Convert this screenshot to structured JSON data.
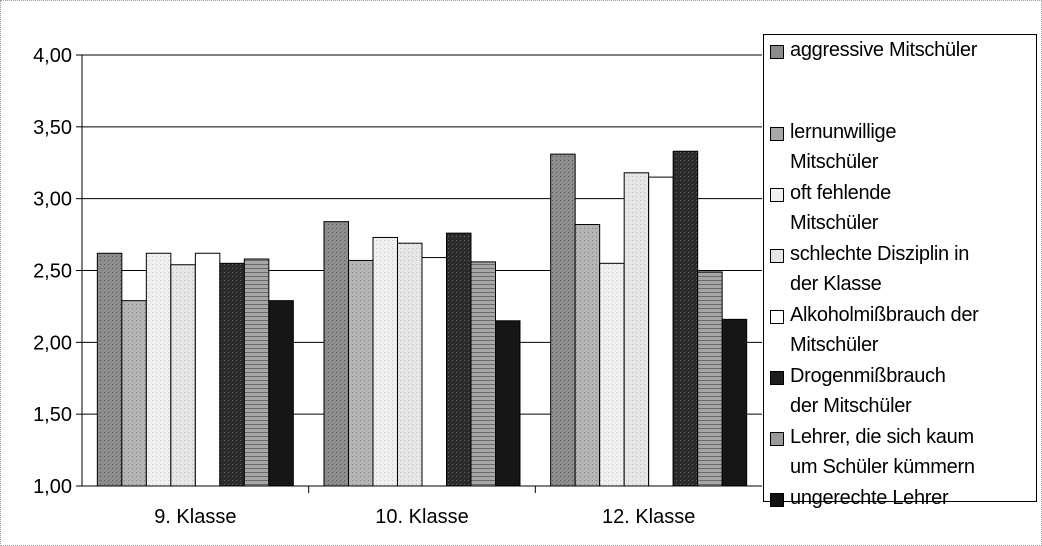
{
  "chart_data": {
    "type": "bar",
    "categories": [
      "9. Klasse",
      "10. Klasse",
      "12. Klasse"
    ],
    "ylim": [
      1.0,
      4.0
    ],
    "yticks": [
      "1,00",
      "1,50",
      "2,00",
      "2,50",
      "3,00",
      "3,50",
      "4,00"
    ],
    "grid": true,
    "legend_position": "right",
    "series": [
      {
        "name": "aggressive Mitschüler",
        "values": [
          2.62,
          2.84,
          3.31
        ],
        "color": "#8c8c8c"
      },
      {
        "name": "lernunwillige Mitschüler",
        "values": [
          2.29,
          2.57,
          2.82
        ],
        "color": "#a8a8a8"
      },
      {
        "name": "oft fehlende Mitschüler",
        "values": [
          2.62,
          2.73,
          2.55
        ],
        "color": "#ececec"
      },
      {
        "name": "schlechte Disziplin in der Klasse",
        "values": [
          2.54,
          2.69,
          3.18
        ],
        "color": "#e2e2e2"
      },
      {
        "name": "Alkoholmißbrauch der Mitschüler",
        "values": [
          2.62,
          2.59,
          3.15
        ],
        "color": "#ffffff"
      },
      {
        "name": "Drogenmißbrauch der Mitschüler",
        "values": [
          2.55,
          2.76,
          3.33
        ],
        "color": "#2b2b2b"
      },
      {
        "name": "Lehrer, die sich kaum um Schüler kümmern",
        "values": [
          2.58,
          2.56,
          2.49
        ],
        "color": "#9a9a9a"
      },
      {
        "name": "ungerechte Lehrer",
        "values": [
          2.29,
          2.15,
          2.16
        ],
        "color": "#1a1a1a"
      }
    ]
  },
  "legend": {
    "items": [
      {
        "lines": [
          "aggressive Mitschüler"
        ]
      },
      {
        "lines": [
          "lernunwillige",
          "Mitschüler"
        ]
      },
      {
        "lines": [
          "oft fehlende",
          "Mitschüler"
        ]
      },
      {
        "lines": [
          "schlechte Disziplin in",
          "der Klasse"
        ]
      },
      {
        "lines": [
          "Alkoholmißbrauch der",
          "Mitschüler"
        ]
      },
      {
        "lines": [
          "Drogenmißbrauch",
          "der Mitschüler"
        ]
      },
      {
        "lines": [
          "Lehrer, die sich kaum",
          "um Schüler kümmern"
        ]
      },
      {
        "lines": [
          "ungerechte Lehrer"
        ]
      }
    ]
  }
}
